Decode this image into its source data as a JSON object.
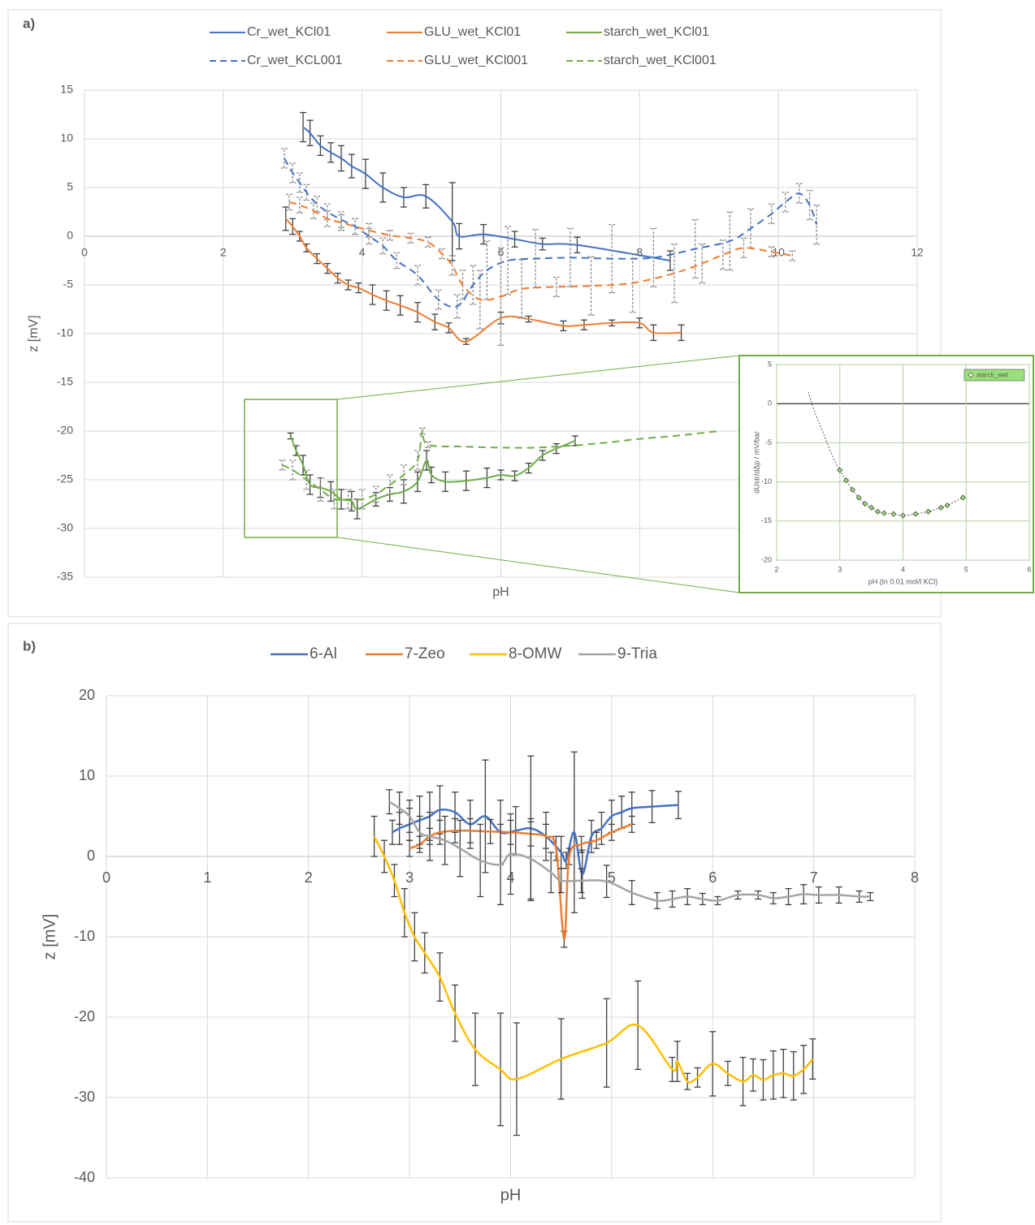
{
  "chart_data": [
    {
      "type": "line",
      "panel_label": "a)",
      "xlabel": "pH",
      "ylabel": "z [mV]",
      "xlim": [
        0,
        12
      ],
      "ylim": [
        -35,
        15
      ],
      "xticks": [
        0,
        2,
        4,
        6,
        8,
        10,
        12
      ],
      "yticks": [
        -35,
        -30,
        -25,
        -20,
        -15,
        -10,
        -5,
        0,
        5,
        10,
        15
      ],
      "grid": true,
      "series": [
        {
          "name": "Cr_wet_KCl01",
          "color": "#4472c4",
          "dash": false,
          "x": [
            3.15,
            3.25,
            3.4,
            3.55,
            3.7,
            3.85,
            4.05,
            4.3,
            4.6,
            4.92,
            5.3,
            5.4,
            5.75,
            6.2,
            6.6,
            7.1,
            8.44
          ],
          "values": [
            11.2,
            10.6,
            9.3,
            8.6,
            8.0,
            7.2,
            6.4,
            5.0,
            4.0,
            4.1,
            1.5,
            0.0,
            0.2,
            -0.3,
            -0.8,
            -0.9,
            -2.5
          ],
          "errors": [
            1.5,
            1.3,
            1.0,
            1.0,
            1.3,
            1.2,
            1.5,
            1.5,
            1.0,
            1.2,
            4.0,
            1.3,
            1.0,
            0.8,
            0.6,
            0.8,
            1.0
          ]
        },
        {
          "name": "GLU_wet_KCl01",
          "color": "#ed7d31",
          "dash": false,
          "x": [
            2.9,
            3.0,
            3.1,
            3.2,
            3.35,
            3.5,
            3.65,
            3.8,
            3.95,
            4.15,
            4.35,
            4.55,
            4.8,
            5.05,
            5.25,
            5.5,
            6.0,
            6.4,
            6.9,
            7.2,
            7.6,
            8.0,
            8.2,
            8.6
          ],
          "values": [
            1.8,
            1.0,
            0.0,
            -1.2,
            -2.3,
            -3.3,
            -4.3,
            -5.0,
            -5.3,
            -6.0,
            -6.6,
            -7.1,
            -7.8,
            -8.8,
            -9.4,
            -10.8,
            -8.4,
            -8.5,
            -9.2,
            -9.1,
            -8.9,
            -8.9,
            -9.9,
            -9.9
          ],
          "errors": [
            1.2,
            0.8,
            0.5,
            0.4,
            0.5,
            0.5,
            0.5,
            0.5,
            0.5,
            1.0,
            1.0,
            1.0,
            1.0,
            0.8,
            0.5,
            0.3,
            0.6,
            0.3,
            0.5,
            0.5,
            0.3,
            0.5,
            0.8,
            0.8
          ]
        },
        {
          "name": "starch_wet_KCl01",
          "color": "#70ad47",
          "dash": false,
          "x": [
            2.97,
            3.05,
            3.15,
            3.25,
            3.4,
            3.55,
            3.7,
            3.85,
            3.93,
            4.2,
            4.4,
            4.6,
            4.8,
            4.93,
            5.0,
            5.2,
            5.5,
            5.8,
            6.0,
            6.2,
            6.4,
            6.6,
            6.8,
            7.07
          ],
          "values": [
            -20.5,
            -22.0,
            -23.5,
            -25.5,
            -25.8,
            -26.2,
            -27.0,
            -27.2,
            -28.0,
            -27.0,
            -26.5,
            -26.2,
            -25.2,
            -23.0,
            -24.5,
            -25.2,
            -25.1,
            -24.8,
            -24.5,
            -24.6,
            -23.8,
            -22.5,
            -21.8,
            -21.0
          ],
          "errors": [
            0.3,
            0.5,
            1.0,
            1.0,
            1.0,
            1.0,
            1.0,
            1.0,
            1.0,
            0.7,
            0.7,
            1.2,
            1.0,
            1.0,
            0.8,
            1.0,
            1.0,
            1.0,
            0.5,
            0.5,
            0.5,
            0.5,
            0.5,
            0.5
          ]
        },
        {
          "name": "Cr_wet_KCL001",
          "color": "#4472c4",
          "dash": true,
          "x": [
            2.88,
            3.0,
            3.1,
            3.2,
            3.35,
            3.5,
            3.7,
            3.9,
            4.1,
            4.3,
            4.5,
            4.8,
            5.1,
            5.37,
            5.6,
            5.8,
            6.1,
            6.5,
            7.0,
            7.6,
            8.2,
            8.8,
            9.3,
            9.6,
            9.9,
            10.1,
            10.3,
            10.45,
            10.55
          ],
          "values": [
            8.0,
            6.5,
            5.5,
            4.5,
            3.3,
            2.5,
            1.7,
            1.0,
            0.0,
            -1.0,
            -2.5,
            -4.0,
            -6.5,
            -7.2,
            -5.0,
            -3.5,
            -2.5,
            -2.3,
            -2.2,
            -2.3,
            -2.2,
            -1.3,
            -0.5,
            0.8,
            2.3,
            3.5,
            4.4,
            3.2,
            1.2
          ],
          "errors": [
            1.0,
            1.0,
            1.0,
            0.8,
            0.8,
            0.8,
            0.8,
            0.8,
            0.8,
            0.8,
            0.8,
            1.0,
            1.0,
            1.2,
            2.0,
            3.0,
            3.5,
            3.0,
            3.0,
            3.5,
            3.0,
            3.0,
            3.0,
            2.0,
            1.0,
            1.0,
            1.0,
            1.5,
            2.0
          ]
        },
        {
          "name": "GLU_wet_KCl001",
          "color": "#ed7d31",
          "dash": true,
          "x": [
            2.95,
            3.1,
            3.3,
            3.5,
            3.7,
            3.9,
            4.1,
            4.4,
            4.7,
            4.95,
            5.15,
            5.3,
            5.45,
            5.7,
            6.0,
            6.3,
            6.8,
            7.3,
            7.9,
            8.5,
            8.9,
            9.2,
            9.5,
            9.9,
            10.2
          ],
          "values": [
            3.5,
            3.2,
            2.6,
            1.8,
            1.4,
            1.0,
            0.6,
            0.1,
            -0.2,
            -0.6,
            -1.8,
            -3.0,
            -5.0,
            -6.5,
            -6.2,
            -5.4,
            -5.2,
            -5.1,
            -4.8,
            -3.8,
            -2.8,
            -1.9,
            -1.2,
            -1.6,
            -2.0
          ],
          "errors": [
            0.8,
            0.8,
            0.8,
            0.8,
            0.8,
            0.8,
            0.7,
            0.5,
            0.5,
            0.5,
            0.5,
            1.0,
            1.5,
            3.0,
            5.0,
            3.0,
            1.0,
            3.0,
            3.0,
            3.0,
            2.0,
            1.5,
            1.0,
            0.5,
            0.5
          ]
        },
        {
          "name": "starch_wet_KCl001",
          "color": "#70ad47",
          "dash": true,
          "x": [
            2.85,
            3.0,
            3.2,
            3.4,
            3.6,
            3.8,
            4.0,
            4.2,
            4.4,
            4.6,
            4.8,
            4.87,
            4.95,
            5.5,
            6.0,
            6.5,
            7.0,
            7.5,
            8.0,
            8.5,
            9.15
          ],
          "values": [
            -23.5,
            -24.0,
            -25.0,
            -26.0,
            -27.0,
            -27.0,
            -27.0,
            -26.5,
            -25.5,
            -24.5,
            -23.0,
            -20.0,
            -21.4,
            -21.6,
            -21.7,
            -21.7,
            -21.5,
            -21.2,
            -20.8,
            -20.5,
            -20.0
          ],
          "errors": [
            0.5,
            1.0,
            1.0,
            1.2,
            1.0,
            1.0,
            1.0,
            0.8,
            1.0,
            1.0,
            1.0,
            0.3,
            0.3,
            null,
            null,
            null,
            null,
            null,
            null,
            null,
            null
          ]
        }
      ]
    },
    {
      "type": "scatter",
      "xlabel": "pH (in 0.01 mol/l KCl)",
      "ylabel": "dUstr/dΔp / mV/bar",
      "xlim": [
        2,
        6
      ],
      "ylim": [
        -20,
        5
      ],
      "xticks": [
        2,
        3,
        4,
        5,
        6
      ],
      "yticks": [
        -20,
        -15,
        -10,
        -5,
        0,
        5
      ],
      "grid": true,
      "series": [
        {
          "name": "starch_wet",
          "color": "#99e07a",
          "x": [
            2.5,
            2.6,
            2.75,
            2.9,
            3.0,
            3.1,
            3.2,
            3.3,
            3.4,
            3.5,
            3.6,
            3.7,
            3.85,
            4.0,
            4.2,
            4.4,
            4.6,
            4.7,
            4.95
          ],
          "values": [
            1.5,
            -1.0,
            -4.0,
            -7.0,
            -8.5,
            -9.8,
            -11.0,
            -12.0,
            -12.8,
            -13.3,
            -13.8,
            -14.0,
            -14.1,
            -14.3,
            -14.1,
            -13.8,
            -13.3,
            -13.0,
            -12.0
          ]
        }
      ]
    },
    {
      "type": "line",
      "panel_label": "b)",
      "xlabel": "pH",
      "ylabel": "z [mV]",
      "xlim": [
        0,
        8
      ],
      "ylim": [
        -40,
        20
      ],
      "xticks": [
        0,
        1,
        2,
        3,
        4,
        5,
        6,
        7,
        8
      ],
      "yticks": [
        -40,
        -30,
        -20,
        -10,
        0,
        10,
        20
      ],
      "grid": true,
      "series": [
        {
          "name": "6-Al",
          "color": "#4472c4",
          "dash": false,
          "x": [
            2.83,
            2.9,
            3.0,
            3.1,
            3.2,
            3.3,
            3.45,
            3.6,
            3.75,
            3.9,
            4.05,
            4.2,
            4.35,
            4.5,
            4.55,
            4.63,
            4.71,
            4.8,
            4.9,
            5.0,
            5.1,
            5.2,
            5.4,
            5.66
          ],
          "values": [
            3.0,
            3.5,
            4.0,
            4.5,
            5.0,
            5.8,
            5.5,
            4.0,
            5.0,
            3.0,
            3.2,
            3.5,
            2.5,
            0.5,
            -0.5,
            3.0,
            -2.2,
            2.5,
            3.5,
            5.0,
            5.5,
            6.0,
            6.2,
            6.4
          ],
          "errors": [
            1.5,
            2.0,
            2.0,
            3.0,
            3.0,
            3.0,
            2.5,
            3.0,
            7.0,
            4.0,
            3.0,
            9.0,
            3.0,
            2.0,
            1.0,
            10.0,
            3.0,
            2.0,
            2.0,
            2.0,
            2.0,
            2.0,
            2.0,
            1.7
          ]
        },
        {
          "name": "7-Zeo",
          "color": "#ed7d31",
          "dash": false,
          "x": [
            3.0,
            3.1,
            3.2,
            3.3,
            3.45,
            3.6,
            3.8,
            4.0,
            4.2,
            4.35,
            4.45,
            4.53,
            4.58,
            4.7,
            4.85,
            5.0,
            5.2
          ],
          "values": [
            1.0,
            1.5,
            2.5,
            3.0,
            3.2,
            3.2,
            3.1,
            3.0,
            2.8,
            2.5,
            1.0,
            -10.3,
            0.0,
            1.5,
            2.0,
            3.0,
            4.0
          ],
          "errors": [
            1.0,
            1.0,
            1.0,
            1.5,
            1.5,
            1.5,
            1.5,
            1.5,
            1.5,
            1.5,
            1.5,
            1.0,
            1.0,
            1.0,
            1.0,
            1.0,
            1.0
          ]
        },
        {
          "name": "8-OMW",
          "color": "#ffc000",
          "dash": false,
          "x": [
            2.65,
            2.75,
            2.85,
            2.95,
            3.05,
            3.15,
            3.3,
            3.45,
            3.65,
            3.9,
            4.06,
            4.5,
            4.95,
            5.26,
            5.6,
            5.65,
            5.75,
            5.85,
            6.0,
            6.15,
            6.3,
            6.4,
            6.5,
            6.6,
            6.7,
            6.8,
            6.9,
            6.99
          ],
          "values": [
            2.5,
            0.0,
            -3.0,
            -7.0,
            -10.0,
            -12.0,
            -15.0,
            -19.5,
            -24.0,
            -26.5,
            -27.7,
            -25.2,
            -23.2,
            -21.0,
            -26.5,
            -25.5,
            -28.0,
            -27.5,
            -25.8,
            -27.0,
            -28.0,
            -27.2,
            -27.8,
            -27.2,
            -27.0,
            -27.3,
            -26.5,
            -25.2
          ],
          "errors": [
            2.5,
            2.0,
            2.0,
            3.0,
            3.0,
            2.5,
            3.0,
            3.5,
            4.5,
            7.0,
            7.0,
            5.0,
            5.5,
            5.5,
            1.5,
            2.5,
            1.0,
            1.2,
            4.0,
            1.5,
            3.0,
            2.0,
            2.5,
            3.0,
            3.0,
            3.0,
            3.0,
            2.5
          ]
        },
        {
          "name": "9-Tria",
          "color": "#a5a5a5",
          "dash": false,
          "x": [
            2.8,
            2.9,
            3.0,
            3.1,
            3.2,
            3.35,
            3.5,
            3.7,
            3.9,
            4.0,
            4.2,
            4.4,
            4.5,
            4.7,
            4.95,
            5.2,
            5.45,
            5.6,
            5.75,
            5.9,
            6.05,
            6.25,
            6.45,
            6.6,
            6.75,
            6.9,
            7.05,
            7.25,
            7.45,
            7.56
          ],
          "values": [
            6.8,
            6.0,
            5.0,
            3.0,
            2.5,
            2.0,
            1.0,
            -0.5,
            -1.0,
            0.3,
            -0.3,
            -2.0,
            -3.0,
            -3.0,
            -3.1,
            -4.5,
            -5.5,
            -5.3,
            -5.0,
            -5.3,
            -5.5,
            -4.8,
            -4.8,
            -5.2,
            -5.0,
            -4.7,
            -4.8,
            -4.8,
            -5.0,
            -5.0
          ],
          "errors": [
            1.5,
            2.0,
            2.0,
            2.0,
            3.0,
            3.0,
            3.5,
            4.5,
            5.0,
            5.0,
            5.0,
            2.5,
            1.5,
            1.5,
            2.0,
            1.5,
            1.0,
            1.0,
            1.0,
            0.7,
            0.5,
            0.5,
            0.5,
            0.7,
            1.0,
            1.2,
            1.0,
            1.0,
            0.7,
            0.5
          ]
        }
      ]
    }
  ]
}
